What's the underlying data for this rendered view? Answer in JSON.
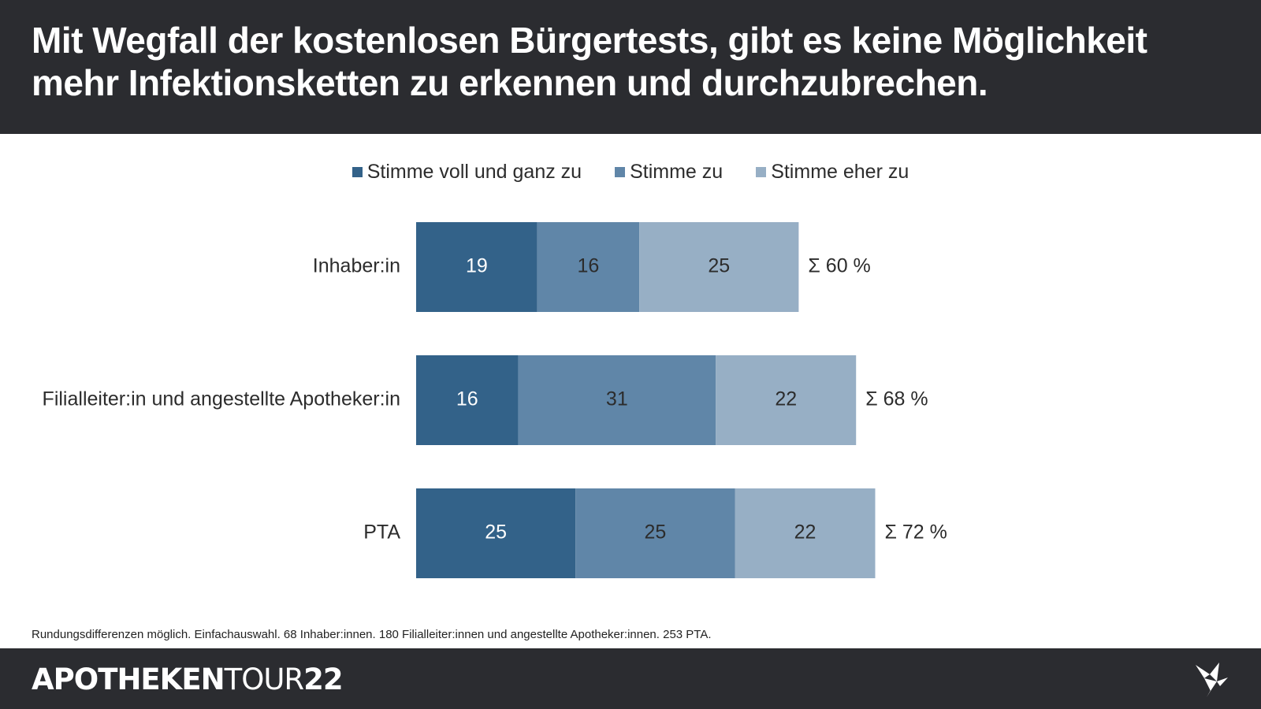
{
  "header": {
    "title_line_1": "Mit Wegfall der kostenlosen Bürgertests, gibt es keine Möglichkeit",
    "title_line_2": "mehr Infektionsketten zu erkennen und durchzubrechen."
  },
  "legend": {
    "items": [
      {
        "label": "Stimme voll und ganz zu",
        "color": "#336289"
      },
      {
        "label": "Stimme zu",
        "color": "#6086a8"
      },
      {
        "label": "Stimme eher zu",
        "color": "#97afc5"
      }
    ]
  },
  "chart_data": {
    "type": "bar",
    "orientation": "horizontal",
    "stacked": true,
    "categories": [
      "Inhaber:in",
      "Filialleiter:in und angestellte Apotheker:in",
      "PTA"
    ],
    "series": [
      {
        "name": "Stimme voll und ganz zu",
        "values": [
          19,
          16,
          25
        ],
        "color": "#336289"
      },
      {
        "name": "Stimme zu",
        "values": [
          16,
          31,
          25
        ],
        "color": "#6086a8"
      },
      {
        "name": "Stimme eher zu",
        "values": [
          25,
          22,
          22
        ],
        "color": "#97afc5"
      }
    ],
    "totals": [
      "Σ 60 %",
      "Σ 68 %",
      "Σ 72 %"
    ],
    "title": "Mit Wegfall der kostenlosen Bürgertests, gibt es keine Möglichkeit mehr Infektionsketten zu erkennen und durchzubrechen.",
    "xlabel": "",
    "ylabel": "",
    "xlim": [
      0,
      72
    ],
    "value_unit": "percent",
    "grid": false,
    "legend_position": "top-center"
  },
  "footnote": {
    "text": "Rundungsdifferenzen möglich. Einfachauswahl. 68 Inhaber:innen. 180 Filialleiter:innen und angestellte Apotheker:innen. 253 PTA."
  },
  "footer": {
    "logo_main": "APOTHEKEN",
    "logo_tour": "TOUR",
    "logo_year": "22",
    "icon": "origami-bird-icon"
  },
  "colors": {
    "header_background": "#2b2c30",
    "footer_background": "#2b2c30",
    "text_dark": "#2c2c2c",
    "text_light": "#ffffff"
  }
}
